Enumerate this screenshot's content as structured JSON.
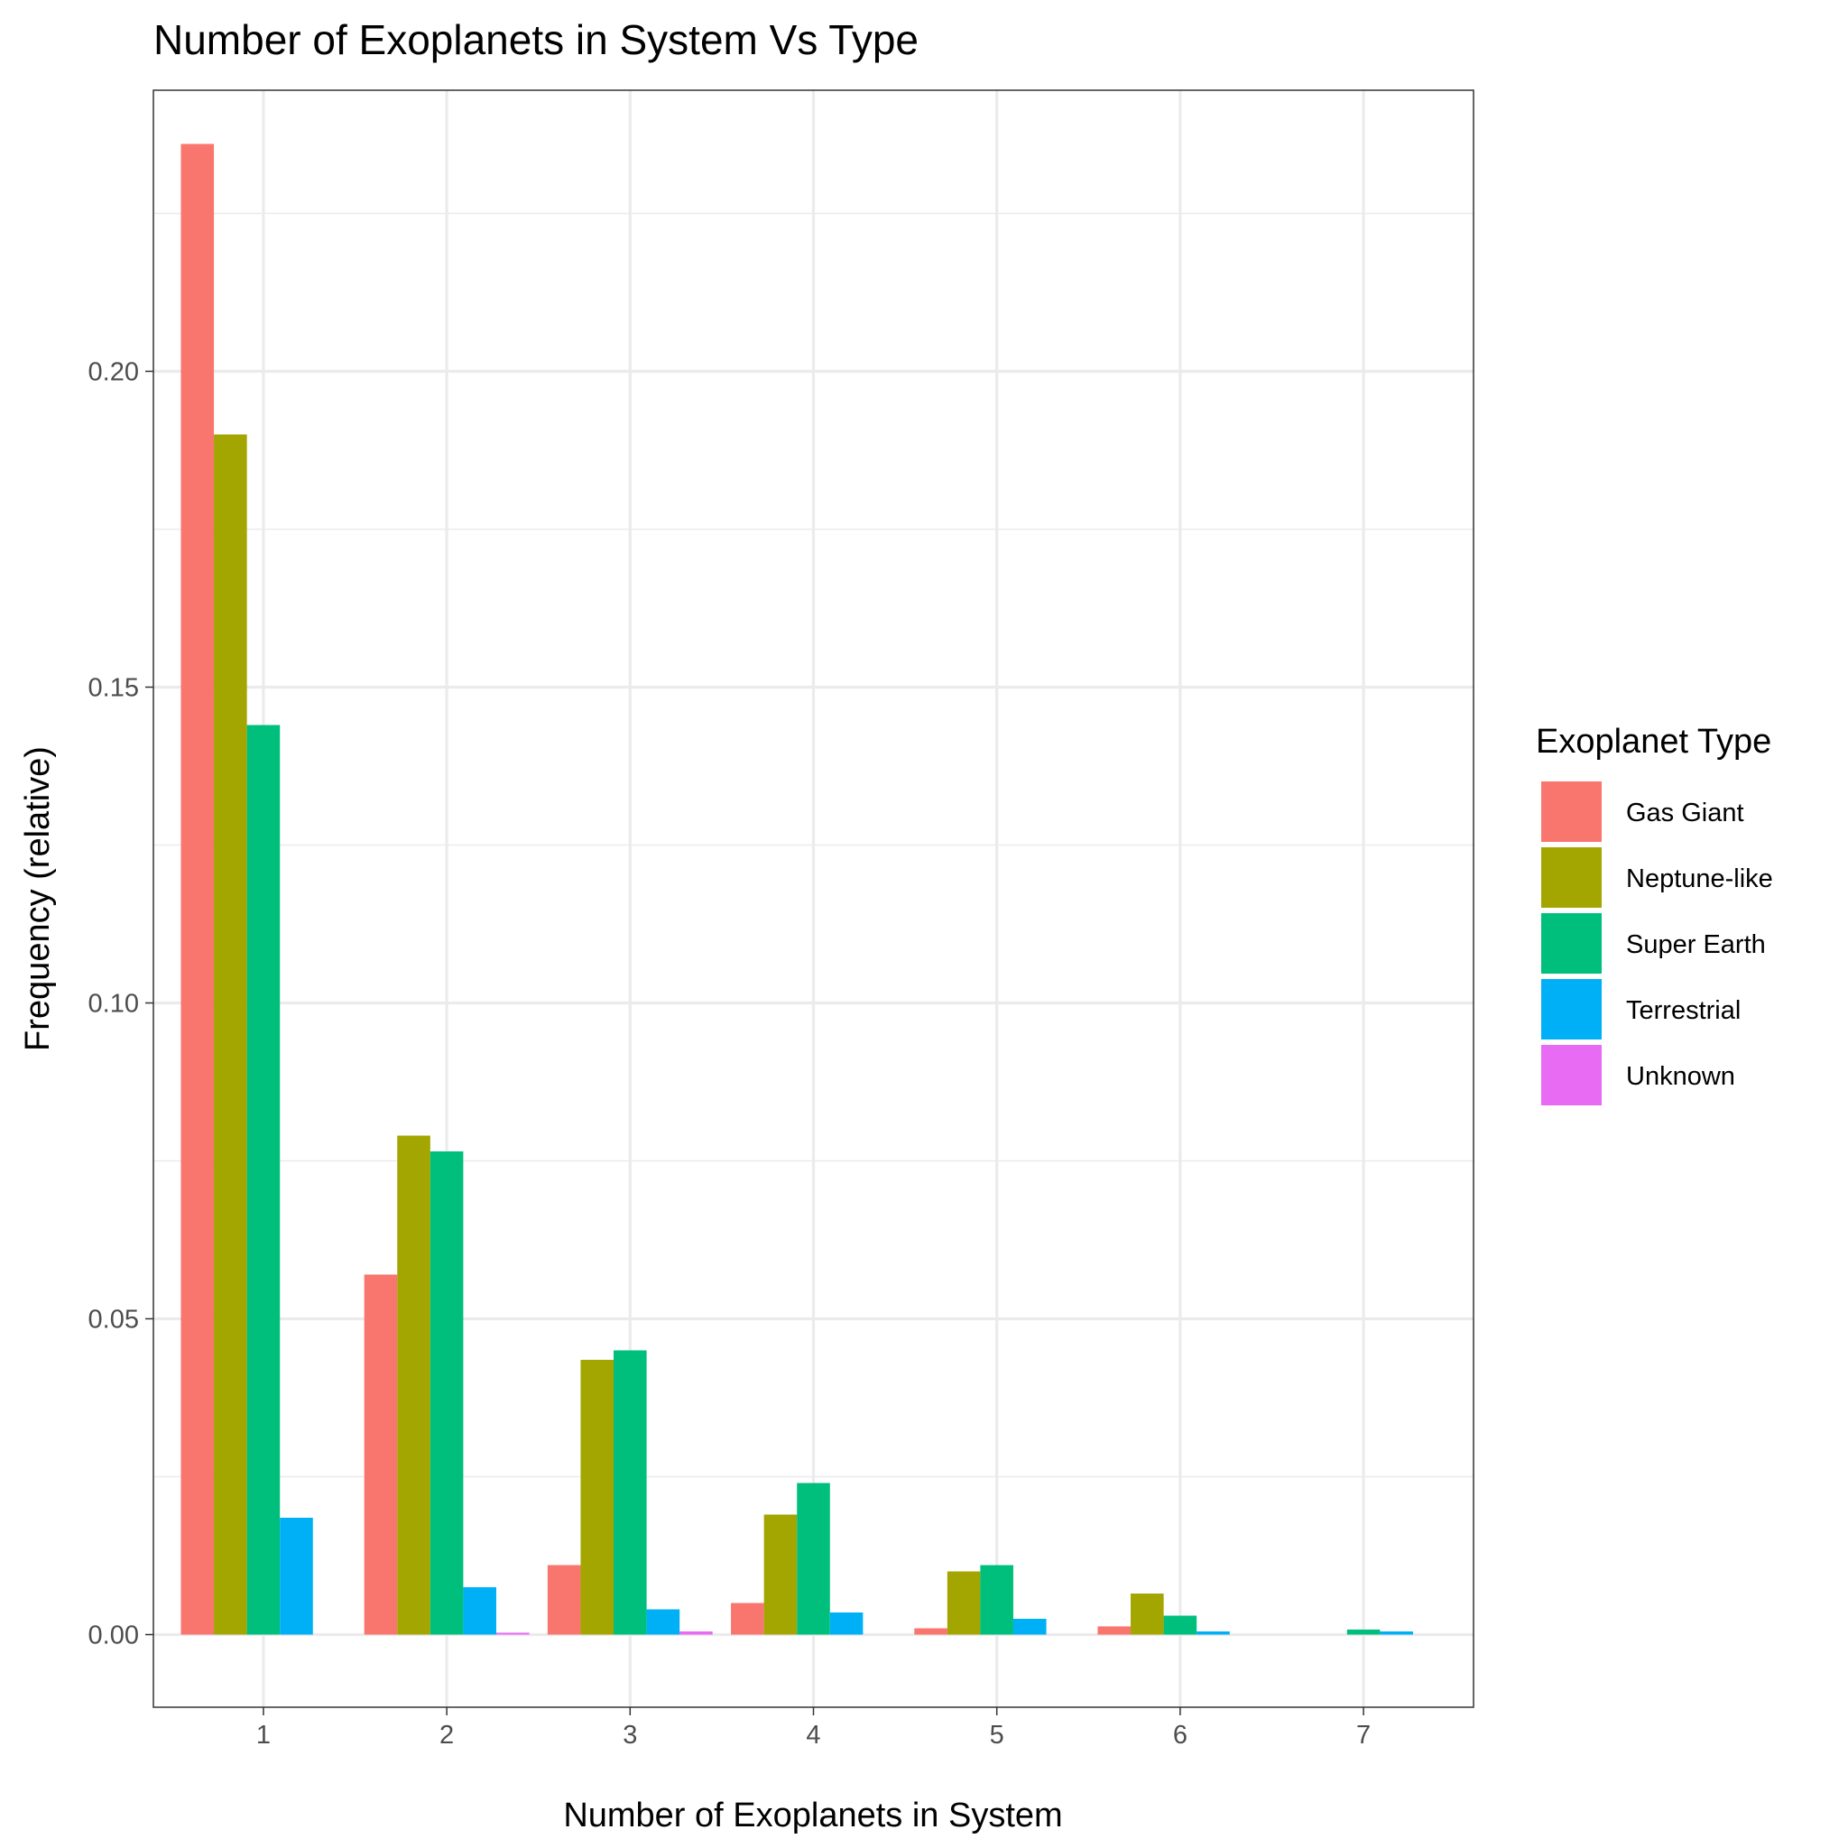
{
  "chart_data": {
    "type": "bar",
    "title": "Number of Exoplanets in System Vs Type",
    "xlabel": "Number of Exoplanets in System",
    "ylabel": "Frequency (relative)",
    "categories": [
      "1",
      "2",
      "3",
      "4",
      "5",
      "6",
      "7"
    ],
    "ylim": [
      -0.0115,
      0.2445
    ],
    "yticks": [
      0.0,
      0.05,
      0.1,
      0.15,
      0.2
    ],
    "ytick_labels": [
      "0.00",
      "0.05",
      "0.10",
      "0.15",
      "0.20"
    ],
    "grid": true,
    "legend": {
      "title": "Exoplanet Type",
      "position": "right"
    },
    "series": [
      {
        "name": "Gas Giant",
        "color": "#F8766D",
        "values": [
          0.236,
          0.057,
          0.011,
          0.005,
          0.001,
          0.0013,
          0.0
        ]
      },
      {
        "name": "Neptune-like",
        "color": "#A3A500",
        "values": [
          0.19,
          0.079,
          0.0435,
          0.019,
          0.01,
          0.0065,
          0.0
        ]
      },
      {
        "name": "Super Earth",
        "color": "#00BF7D",
        "values": [
          0.144,
          0.0765,
          0.045,
          0.024,
          0.011,
          0.003,
          0.0008
        ]
      },
      {
        "name": "Terrestrial",
        "color": "#00B0F6",
        "values": [
          0.0185,
          0.0075,
          0.004,
          0.0035,
          0.0025,
          0.0005,
          0.0005
        ]
      },
      {
        "name": "Unknown",
        "color": "#E76BF3",
        "values": [
          0.0,
          0.0003,
          0.0005,
          0.0,
          0.0,
          0.0,
          0.0
        ]
      }
    ]
  }
}
